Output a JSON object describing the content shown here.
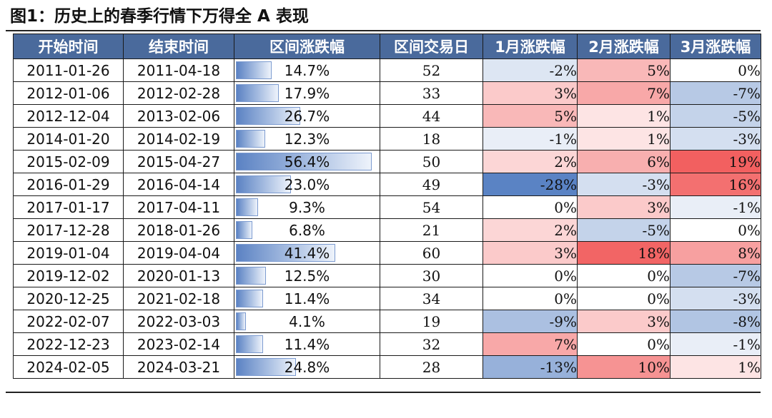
{
  "figure_title": "图1：历史上的春季行情下万得全 A 表现",
  "headers": [
    "开始时间",
    "结束时间",
    "区间涨跌幅",
    "区间交易日",
    "1月涨跌幅",
    "2月涨跌幅",
    "3月涨跌幅"
  ],
  "colors": {
    "header_bg": "#4a6a9c",
    "negative_strong": "#5a83c4",
    "positive_strong": "#f26060",
    "neutral": "#ffffff"
  },
  "bar_max_percent": 56.4,
  "rows": [
    {
      "start": "2011-01-26",
      "end": "2011-04-18",
      "change": "14.7%",
      "change_value": 14.7,
      "days": "52",
      "m1": "-2%",
      "m2": "5%",
      "m3": "0%"
    },
    {
      "start": "2012-01-06",
      "end": "2012-02-28",
      "change": "17.9%",
      "change_value": 17.9,
      "days": "33",
      "m1": "3%",
      "m2": "7%",
      "m3": "-7%"
    },
    {
      "start": "2012-12-04",
      "end": "2013-02-06",
      "change": "26.7%",
      "change_value": 26.7,
      "days": "44",
      "m1": "5%",
      "m2": "1%",
      "m3": "-5%"
    },
    {
      "start": "2014-01-20",
      "end": "2014-02-19",
      "change": "12.3%",
      "change_value": 12.3,
      "days": "18",
      "m1": "-1%",
      "m2": "1%",
      "m3": "-3%"
    },
    {
      "start": "2015-02-09",
      "end": "2015-04-27",
      "change": "56.4%",
      "change_value": 56.4,
      "days": "50",
      "m1": "2%",
      "m2": "6%",
      "m3": "19%"
    },
    {
      "start": "2016-01-29",
      "end": "2016-04-14",
      "change": "23.0%",
      "change_value": 23.0,
      "days": "49",
      "m1": "-28%",
      "m2": "-3%",
      "m3": "16%"
    },
    {
      "start": "2017-01-17",
      "end": "2017-04-11",
      "change": "9.3%",
      "change_value": 9.3,
      "days": "54",
      "m1": "0%",
      "m2": "3%",
      "m3": "-1%"
    },
    {
      "start": "2017-12-28",
      "end": "2018-01-26",
      "change": "6.8%",
      "change_value": 6.8,
      "days": "21",
      "m1": "2%",
      "m2": "-5%",
      "m3": "0%"
    },
    {
      "start": "2019-01-04",
      "end": "2019-04-04",
      "change": "41.4%",
      "change_value": 41.4,
      "days": "60",
      "m1": "3%",
      "m2": "18%",
      "m3": "8%"
    },
    {
      "start": "2019-12-02",
      "end": "2020-01-13",
      "change": "12.5%",
      "change_value": 12.5,
      "days": "30",
      "m1": "0%",
      "m2": "0%",
      "m3": "-7%"
    },
    {
      "start": "2020-12-25",
      "end": "2021-02-18",
      "change": "11.4%",
      "change_value": 11.4,
      "days": "34",
      "m1": "0%",
      "m2": "0%",
      "m3": "-3%"
    },
    {
      "start": "2022-02-07",
      "end": "2022-03-03",
      "change": "4.1%",
      "change_value": 4.1,
      "days": "19",
      "m1": "-9%",
      "m2": "3%",
      "m3": "-8%"
    },
    {
      "start": "2022-12-23",
      "end": "2023-02-14",
      "change": "11.4%",
      "change_value": 11.4,
      "days": "32",
      "m1": "7%",
      "m2": "0%",
      "m3": "-1%"
    },
    {
      "start": "2024-02-05",
      "end": "2024-03-21",
      "change": "24.8%",
      "change_value": 24.8,
      "days": "28",
      "m1": "-13%",
      "m2": "10%",
      "m3": "1%"
    }
  ]
}
